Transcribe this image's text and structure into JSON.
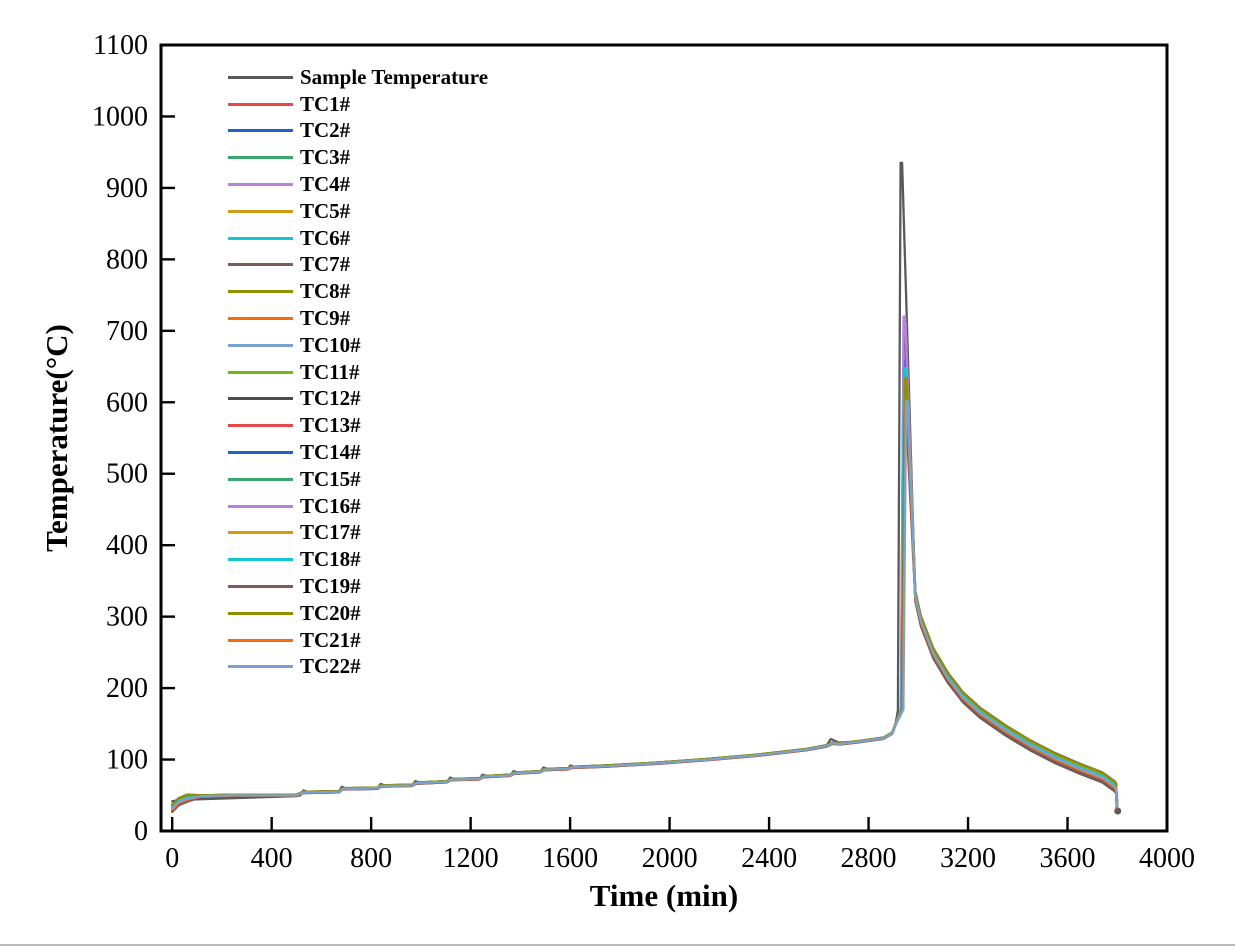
{
  "figure": {
    "background": "#ffffff",
    "frame_color": "#000000",
    "bottom_divider_color": "#b9b9b9"
  },
  "chart_data": {
    "type": "line",
    "title": "",
    "xlabel": "Time (min)",
    "ylabel": "Temperature(°C)",
    "xlim": [
      -45,
      4000
    ],
    "ylim": [
      0,
      1100
    ],
    "xticks": [
      0,
      400,
      800,
      1200,
      1600,
      2000,
      2400,
      2800,
      3200,
      3600,
      4000
    ],
    "yticks": [
      0,
      100,
      200,
      300,
      400,
      500,
      600,
      700,
      800,
      900,
      1000,
      1100
    ],
    "grid": false,
    "legend_position": "upper-left-inside",
    "description": "Temperature vs time for battery thermal-runaway test: ~50°C plateau, stepped heating ramp 50→150°C, runaway spike at ~2940 min (sample 935°C, thermocouples 580-720°C), then cooling decay to ~65°C ending with a sharp drop at ~3800 min",
    "baseline_pre": [
      [
        0,
        32
      ],
      [
        25,
        41
      ],
      [
        60,
        46
      ],
      [
        120,
        49
      ],
      [
        250,
        50
      ],
      [
        500,
        50
      ],
      [
        525,
        54
      ],
      [
        670,
        55
      ],
      [
        685,
        59
      ],
      [
        825,
        60
      ],
      [
        840,
        63
      ],
      [
        965,
        64
      ],
      [
        980,
        67
      ],
      [
        1105,
        69
      ],
      [
        1120,
        72
      ],
      [
        1235,
        73
      ],
      [
        1250,
        76
      ],
      [
        1360,
        78
      ],
      [
        1375,
        81
      ],
      [
        1480,
        83
      ],
      [
        1495,
        86
      ],
      [
        1590,
        87
      ],
      [
        1605,
        89
      ],
      [
        1750,
        91
      ],
      [
        1950,
        95
      ],
      [
        2150,
        100
      ],
      [
        2350,
        106
      ],
      [
        2550,
        114
      ],
      [
        2630,
        119
      ],
      [
        2655,
        123
      ],
      [
        2685,
        122
      ],
      [
        2760,
        125
      ],
      [
        2860,
        130
      ],
      [
        2895,
        137
      ],
      [
        2908,
        149
      ]
    ],
    "sample_pre": [
      [
        0,
        48
      ],
      [
        35,
        50
      ],
      [
        500,
        50
      ],
      [
        515,
        51
      ],
      [
        528,
        58
      ],
      [
        550,
        55
      ],
      [
        670,
        56
      ],
      [
        682,
        63
      ],
      [
        705,
        60
      ],
      [
        825,
        61
      ],
      [
        838,
        67
      ],
      [
        860,
        64
      ],
      [
        965,
        65
      ],
      [
        978,
        71
      ],
      [
        1000,
        68
      ],
      [
        1105,
        70
      ],
      [
        1118,
        76
      ],
      [
        1140,
        73
      ],
      [
        1235,
        74
      ],
      [
        1248,
        80
      ],
      [
        1270,
        77
      ],
      [
        1360,
        79
      ],
      [
        1373,
        85
      ],
      [
        1395,
        82
      ],
      [
        1480,
        84
      ],
      [
        1493,
        90
      ],
      [
        1515,
        87
      ],
      [
        1590,
        88
      ],
      [
        1602,
        93
      ],
      [
        1625,
        90
      ],
      [
        1750,
        92
      ],
      [
        1950,
        96
      ],
      [
        2150,
        101
      ],
      [
        2350,
        107
      ],
      [
        2550,
        115
      ],
      [
        2630,
        120
      ],
      [
        2648,
        130
      ],
      [
        2680,
        125
      ],
      [
        2760,
        126
      ],
      [
        2860,
        131
      ],
      [
        2895,
        138
      ],
      [
        2908,
        150
      ]
    ],
    "decay": [
      [
        2988,
        330
      ],
      [
        3010,
        295
      ],
      [
        3060,
        250
      ],
      [
        3120,
        215
      ],
      [
        3180,
        188
      ],
      [
        3250,
        166
      ],
      [
        3350,
        142
      ],
      [
        3450,
        121
      ],
      [
        3550,
        103
      ],
      [
        3650,
        88
      ],
      [
        3740,
        76
      ],
      [
        3788,
        64
      ],
      [
        3795,
        61
      ],
      [
        3798,
        40
      ],
      [
        3800,
        36
      ]
    ],
    "series": [
      {
        "name": "Sample Temperature",
        "color": "#595959",
        "peak": 935,
        "apex_t": 2932,
        "offset": -8,
        "end_marker": true
      },
      {
        "name": "TC1#",
        "color": "#e5484b",
        "peak": 622,
        "apex_t": 2948,
        "offset": -4.5
      },
      {
        "name": "TC2#",
        "color": "#2061cf",
        "peak": 662,
        "apex_t": 2950,
        "offset": -0.5
      },
      {
        "name": "TC3#",
        "color": "#3aa76e",
        "peak": 642,
        "apex_t": 2952,
        "offset": 4
      },
      {
        "name": "TC4#",
        "color": "#ba80e0",
        "peak": 712,
        "apex_t": 2946,
        "offset": 1.5
      },
      {
        "name": "TC5#",
        "color": "#cf9c13",
        "peak": 630,
        "apex_t": 2948,
        "offset": 2.5
      },
      {
        "name": "TC6#",
        "color": "#12c7d2",
        "peak": 652,
        "apex_t": 2950,
        "offset": 0.5
      },
      {
        "name": "TC7#",
        "color": "#7e5a5a",
        "peak": 588,
        "apex_t": 2952,
        "offset": -6.5
      },
      {
        "name": "TC8#",
        "color": "#8f8f00",
        "peak": 636,
        "apex_t": 2946,
        "offset": 5
      },
      {
        "name": "TC9#",
        "color": "#f56b0d",
        "peak": 598,
        "apex_t": 2948,
        "offset": -3.5
      },
      {
        "name": "TC10#",
        "color": "#7ba2ce",
        "peak": 606,
        "apex_t": 2950,
        "offset": -1.5
      },
      {
        "name": "TC11#",
        "color": "#70b912",
        "peak": 646,
        "apex_t": 2952,
        "offset": 3.5
      },
      {
        "name": "TC12#",
        "color": "#4d4d4d",
        "peak": 700,
        "apex_t": 2944,
        "offset": 6
      },
      {
        "name": "TC13#",
        "color": "#e5484b",
        "peak": 618,
        "apex_t": 2946,
        "offset": -4
      },
      {
        "name": "TC14#",
        "color": "#2061cf",
        "peak": 658,
        "apex_t": 2948,
        "offset": 0
      },
      {
        "name": "TC15#",
        "color": "#3aa76e",
        "peak": 640,
        "apex_t": 2950,
        "offset": 4.5
      },
      {
        "name": "TC16#",
        "color": "#ba80e0",
        "peak": 720,
        "apex_t": 2944,
        "offset": 2
      },
      {
        "name": "TC17#",
        "color": "#cf9c13",
        "peak": 626,
        "apex_t": 2952,
        "offset": 3
      },
      {
        "name": "TC18#",
        "color": "#12c7d2",
        "peak": 648,
        "apex_t": 2946,
        "offset": 1
      },
      {
        "name": "TC19#",
        "color": "#7e5a5a",
        "peak": 584,
        "apex_t": 2948,
        "offset": -6
      },
      {
        "name": "TC20#",
        "color": "#8f8f00",
        "peak": 634,
        "apex_t": 2950,
        "offset": 5.5
      },
      {
        "name": "TC21#",
        "color": "#f56b0d",
        "peak": 594,
        "apex_t": 2952,
        "offset": -3
      },
      {
        "name": "TC22#",
        "color": "#7ba2ce",
        "peak": 602,
        "apex_t": 2954,
        "offset": -1
      }
    ]
  }
}
